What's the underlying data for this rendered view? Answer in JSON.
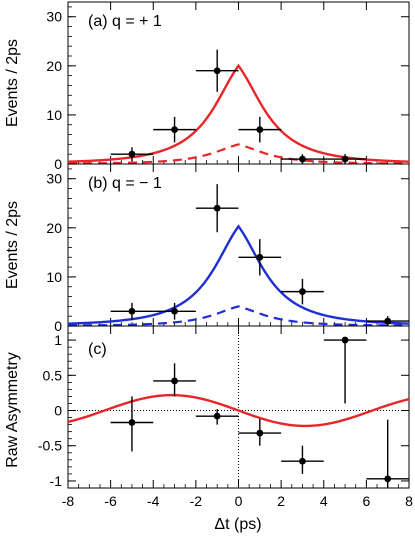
{
  "chart_data": [
    {
      "type": "scatter",
      "panel_label": "(a) q = + 1",
      "ylabel": "Events / 2ps",
      "xlim": [
        -8,
        8
      ],
      "ylim": [
        0,
        33
      ],
      "yticks": [
        0,
        10,
        20,
        30
      ],
      "points": [
        {
          "x": -5,
          "y": 2,
          "xerr": 1,
          "yerr": 1.4
        },
        {
          "x": -3,
          "y": 7,
          "xerr": 1,
          "yerr": 2.6
        },
        {
          "x": -1,
          "y": 19,
          "xerr": 1,
          "yerr": 4.3
        },
        {
          "x": 1,
          "y": 7,
          "xerr": 1,
          "yerr": 2.6
        },
        {
          "x": 3,
          "y": 1,
          "xerr": 1,
          "yerr": 1.0
        },
        {
          "x": 5,
          "y": 1,
          "xerr": 1,
          "yerr": 1.0
        }
      ],
      "fit_peak": 20,
      "background_peak": 4,
      "curve_color": "#e8262a"
    },
    {
      "type": "scatter",
      "panel_label": "(b) q = − 1",
      "ylabel": "Events / 2ps",
      "xlim": [
        -8,
        8
      ],
      "ylim": [
        0,
        33
      ],
      "yticks": [
        0,
        10,
        20,
        30
      ],
      "points": [
        {
          "x": -5,
          "y": 3,
          "xerr": 1,
          "yerr": 1.7
        },
        {
          "x": -3,
          "y": 3,
          "xerr": 1,
          "yerr": 1.7
        },
        {
          "x": -1,
          "y": 24,
          "xerr": 1,
          "yerr": 4.9
        },
        {
          "x": 1,
          "y": 14,
          "xerr": 1,
          "yerr": 3.7
        },
        {
          "x": 3,
          "y": 7,
          "xerr": 1,
          "yerr": 2.6
        },
        {
          "x": 7,
          "y": 1,
          "xerr": 1,
          "yerr": 1.0
        }
      ],
      "fit_peak": 20.3,
      "background_peak": 4,
      "curve_color": "#1f2fd6"
    },
    {
      "type": "scatter",
      "panel_label": "(c)",
      "ylabel": "Raw Asymmetry",
      "xlabel": "Δt (ps)",
      "xlim": [
        -8,
        8
      ],
      "ylim": [
        -1.1,
        1.2
      ],
      "yticks": [
        -1,
        -0.5,
        0,
        0.5,
        1
      ],
      "ytick_labels": [
        "-1",
        "-0.5",
        "0",
        "0.5",
        "1"
      ],
      "xticks": [
        -8,
        -6,
        -4,
        -2,
        0,
        2,
        4,
        6,
        8
      ],
      "xtick_labels": [
        "-8",
        "-6",
        "-4",
        "-2",
        "0",
        "2",
        "4",
        "6",
        "8"
      ],
      "points": [
        {
          "x": -5,
          "y": -0.17,
          "xerr": 1,
          "ylo": -0.58,
          "yhi": 0.2
        },
        {
          "x": -3,
          "y": 0.42,
          "xerr": 1,
          "ylo": 0.2,
          "yhi": 0.67
        },
        {
          "x": -1,
          "y": -0.08,
          "xerr": 1,
          "ylo": -0.2,
          "yhi": 0.02
        },
        {
          "x": 1,
          "y": -0.32,
          "xerr": 1,
          "ylo": -0.5,
          "yhi": -0.12
        },
        {
          "x": 3,
          "y": -0.72,
          "xerr": 1,
          "ylo": -0.9,
          "yhi": -0.5
        },
        {
          "x": 5,
          "y": 1.0,
          "xerr": 1,
          "ylo": 0.1,
          "yhi": 1.0
        },
        {
          "x": 7,
          "y": -0.97,
          "xerr": 1,
          "ylo": -1.1,
          "yhi": -0.13
        }
      ],
      "fit_amplitude": -0.22,
      "curve_color": "#e8262a"
    }
  ]
}
